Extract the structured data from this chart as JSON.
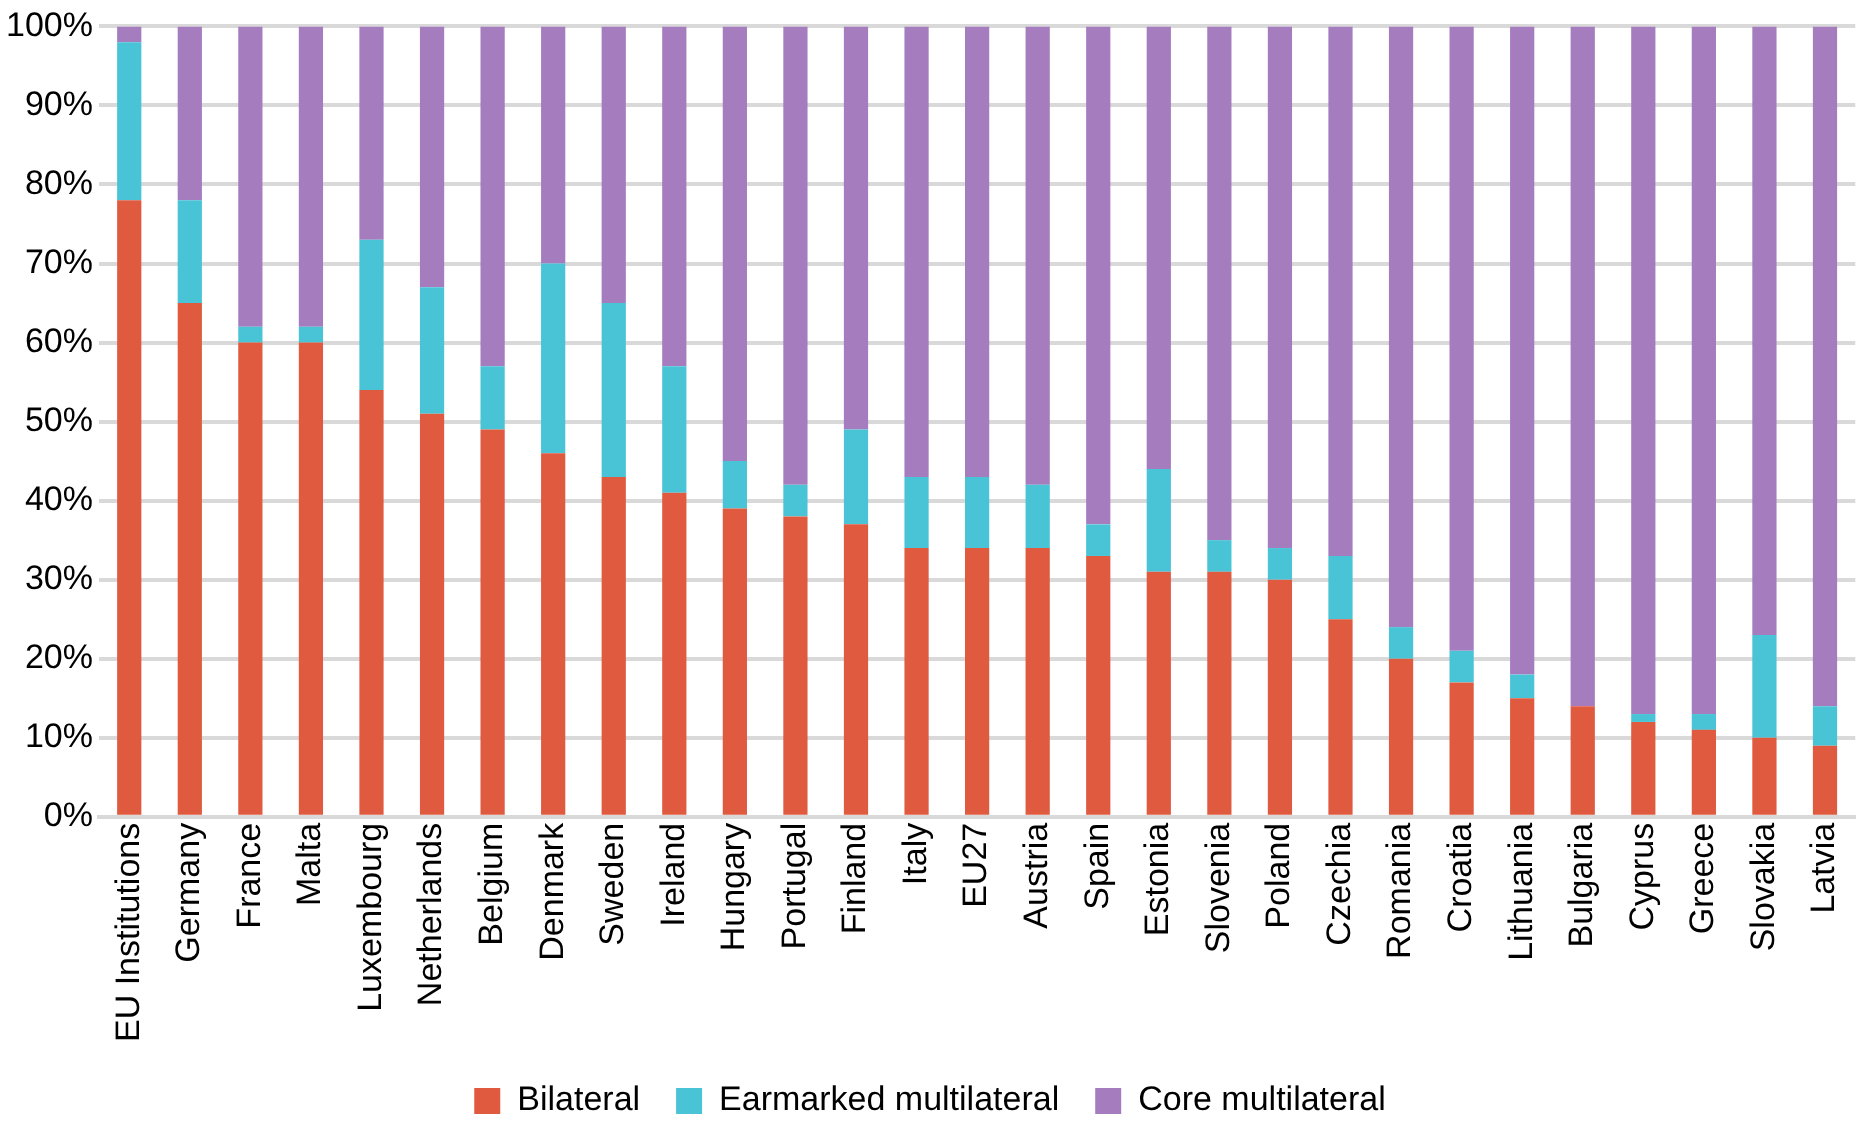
{
  "chart_data": {
    "type": "bar",
    "stacked": true,
    "categories": [
      "EU Institutions",
      "Germany",
      "France",
      "Malta",
      "Luxembourg",
      "Netherlands",
      "Belgium",
      "Denmark",
      "Sweden",
      "Ireland",
      "Hungary",
      "Portugal",
      "Finland",
      "Italy",
      "EU27",
      "Austria",
      "Spain",
      "Estonia",
      "Slovenia",
      "Poland",
      "Czechia",
      "Romania",
      "Croatia",
      "Lithuania",
      "Bulgaria",
      "Cyprus",
      "Greece",
      "Slovakia",
      "Latvia"
    ],
    "series": [
      {
        "name": "Bilateral",
        "color": "#e05a3f",
        "values": [
          78,
          65,
          60,
          60,
          54,
          51,
          49,
          46,
          43,
          41,
          39,
          38,
          37,
          34,
          34,
          34,
          33,
          31,
          31,
          30,
          25,
          20,
          17,
          15,
          14,
          12,
          11,
          10,
          9
        ]
      },
      {
        "name": "Earmarked multilateral",
        "color": "#48c4d6",
        "values": [
          20,
          13,
          2,
          2,
          19,
          16,
          8,
          24,
          22,
          16,
          6,
          4,
          12,
          9,
          9,
          8,
          4,
          13,
          4,
          4,
          8,
          4,
          4,
          3,
          0,
          1,
          2,
          13,
          5
        ]
      },
      {
        "name": "Core multilateral",
        "color": "#a57cbe",
        "values": [
          2,
          22,
          38,
          38,
          27,
          33,
          43,
          30,
          35,
          43,
          55,
          58,
          51,
          57,
          57,
          58,
          63,
          56,
          65,
          66,
          67,
          76,
          79,
          82,
          86,
          87,
          87,
          77,
          86
        ]
      }
    ],
    "ylim": [
      0,
      100
    ],
    "yticks": [
      {
        "value": 0,
        "label": "0%"
      },
      {
        "value": 10,
        "label": "10%"
      },
      {
        "value": 20,
        "label": "20%"
      },
      {
        "value": 30,
        "label": "30%"
      },
      {
        "value": 40,
        "label": "40%"
      },
      {
        "value": 50,
        "label": "50%"
      },
      {
        "value": 60,
        "label": "60%"
      },
      {
        "value": 70,
        "label": "70%"
      },
      {
        "value": 80,
        "label": "80%"
      },
      {
        "value": 90,
        "label": "90%"
      },
      {
        "value": 100,
        "label": "100%"
      }
    ],
    "grid": "y",
    "legend": "bottom"
  }
}
